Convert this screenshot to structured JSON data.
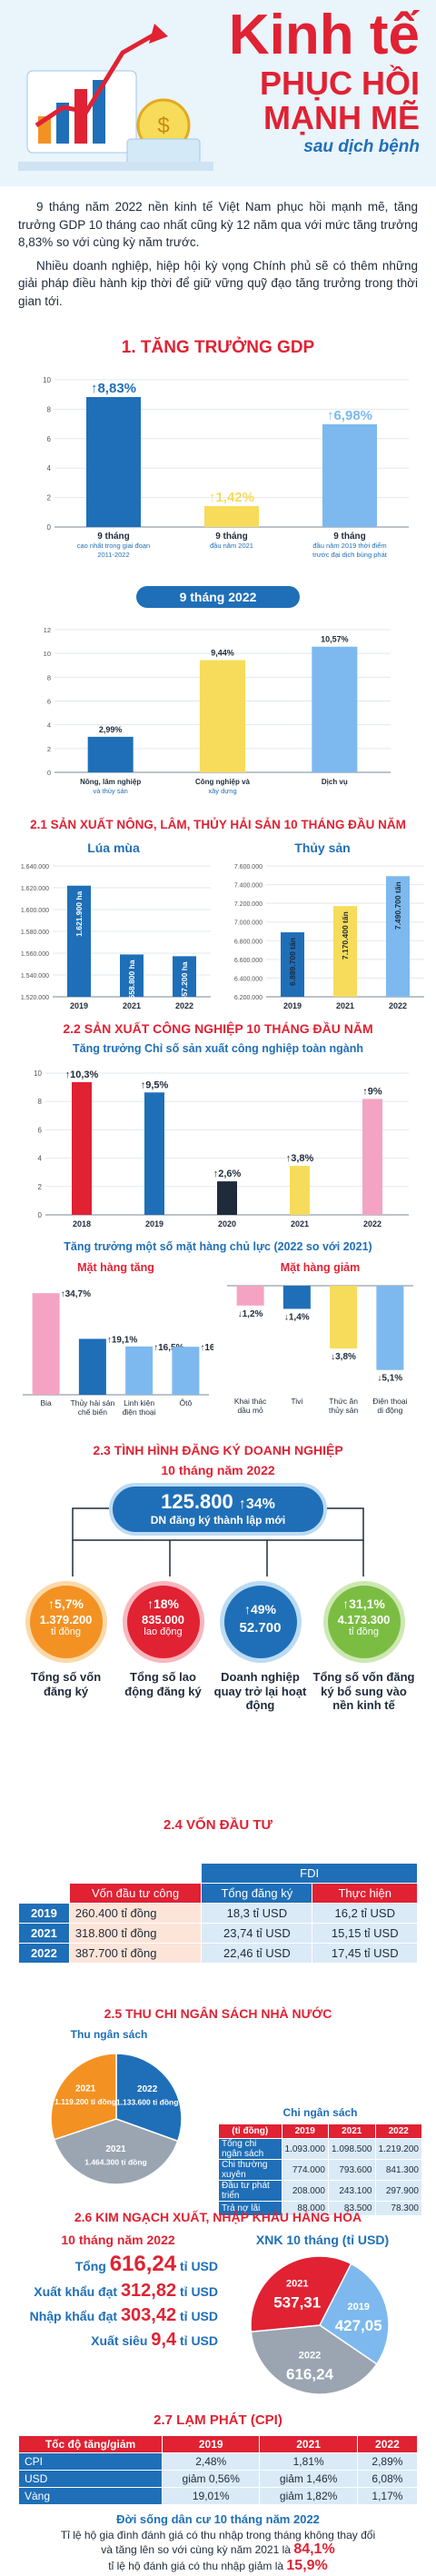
{
  "hero": {
    "title_line1": "Kinh tế",
    "title_line2": "PHỤC HỒI",
    "title_line3": "MẠNH MẼ",
    "title_line4": "sau dịch bệnh"
  },
  "intro": {
    "p1": "9 tháng năm 2022 nền kinh tế Việt Nam phục hồi mạnh mẽ, tăng trưởng GDP 10 tháng cao nhất cũng kỳ 12 năm qua với mức tăng trưởng 8,83% so với cùng kỳ năm trước.",
    "p2": "Nhiều doanh nghiệp, hiệp hội kỳ vọng Chính phủ sẽ có thêm những giải pháp điều hành kịp thời để giữ vững quỹ đạo tăng trưởng trong thời gian tới."
  },
  "sections": {
    "gdp": "1. TĂNG TRƯỞNG GDP",
    "agri": "2.1 SẢN XUẤT NÔNG, LÂM, THỦY HẢI SẢN 10 THÁNG ĐẦU NĂM",
    "industry": "2.2 SẢN XUẤT CÔNG NGHIỆP 10 THÁNG ĐẦU NĂM",
    "business": "2.3 TÌNH HÌNH ĐĂNG KÝ DOANH NGHIỆP",
    "invest": "2.4 VỐN ĐẦU TƯ",
    "budget": "2.5 THU CHI NGÂN SÁCH NHÀ NƯỚC",
    "trade": "2.6 KIM NGẠCH XUẤT, NHẬP KHẨU HÀNG HÓA",
    "cpi": "2.7 LẠM PHÁT (CPI)"
  },
  "colors": {
    "red": "#e02233",
    "blue": "#1f6fb8",
    "lightblue": "#7db9ee",
    "yellow": "#f6dc5a",
    "pink": "#f4a3c3",
    "orange": "#f39223",
    "green": "#7bbd42",
    "gray": "#9aa5b1"
  },
  "chart_data": [
    {
      "type": "bar",
      "id": "gdp",
      "categories": [
        "9 tháng",
        "9 tháng",
        "9 tháng"
      ],
      "category_notes": [
        "cao nhất trong giai đoạn 2011-2022",
        "đầu năm 2021",
        "đầu năm 2019 thời điểm trước đại dịch bùng phát"
      ],
      "values": [
        8.83,
        1.42,
        6.98
      ],
      "labels": [
        "8,83%",
        "1,42%",
        "6,98%"
      ],
      "colors": [
        "#1f6fb8",
        "#f6dc5a",
        "#7db9ee"
      ],
      "ylim": [
        0,
        10
      ]
    },
    {
      "type": "bar",
      "id": "gdp_sector",
      "title": "9 tháng 2022",
      "categories": [
        "Nông, lâm nghiệp và thủy sản",
        "Công nghiệp và xây dựng",
        "Dịch vụ"
      ],
      "values": [
        2.99,
        9.44,
        10.57
      ],
      "labels": [
        "2,99%",
        "9,44%",
        "10,57%"
      ],
      "colors": [
        "#1f6fb8",
        "#f6dc5a",
        "#7db9ee"
      ],
      "ylim": [
        0,
        12
      ]
    },
    {
      "type": "bar",
      "id": "rice",
      "title": "Lúa mùa",
      "categories": [
        "2019",
        "2021",
        "2022"
      ],
      "values": [
        1621900,
        1558800,
        1557200
      ],
      "labels": [
        "1.621.900 ha",
        "1.558.800 ha",
        "1.557.200 ha"
      ],
      "yticks": [
        "1.520.000",
        "1.540.000",
        "1.560.000",
        "1.580.000",
        "1.600.000",
        "1.620.000",
        "1.640.000"
      ],
      "ylim": [
        1520000,
        1640000
      ]
    },
    {
      "type": "bar",
      "id": "seafood",
      "title": "Thủy sản",
      "categories": [
        "2019",
        "2021",
        "2022"
      ],
      "values": [
        6889700,
        7170400,
        7490700
      ],
      "labels": [
        "6.889.700 tấn",
        "7.170.400 tấn",
        "7.490.700 tấn"
      ],
      "yticks": [
        "6.200.000",
        "6.400.000",
        "6.600.000",
        "6.800.000",
        "7.000.000",
        "7.200.000",
        "7.400.000",
        "7.600.000"
      ],
      "ylim": [
        6200000,
        7600000
      ]
    },
    {
      "type": "bar",
      "id": "industry_index",
      "title": "Tăng trưởng Chỉ số sản xuất công nghiệp toàn ngành",
      "categories": [
        "2018",
        "2019",
        "2020",
        "2021",
        "2022"
      ],
      "values": [
        10.3,
        9.5,
        2.6,
        3.8,
        9
      ],
      "labels": [
        "10,3%",
        "9,5%",
        "2,6%",
        "3,8%",
        "9%"
      ],
      "colors": [
        "#e02233",
        "#1f6fb8",
        "#1f2b3a",
        "#f6dc5a",
        "#f4a3c3"
      ],
      "yticks": [
        "0",
        "2",
        "4",
        "6",
        "8",
        "10"
      ],
      "ylim": [
        0,
        11
      ]
    },
    {
      "type": "bar",
      "id": "key_up",
      "group_title": "Tăng trưởng một số mặt hàng chủ lực (2022 so với 2021)",
      "title": "Mặt hàng tăng",
      "categories": [
        "Bia",
        "Thủy hải sản chế biến",
        "Linh kiện điện thoại",
        "Ôtô"
      ],
      "values": [
        34.7,
        19.1,
        16.5,
        16.4
      ],
      "labels": [
        "34,7%",
        "19,1%",
        "16,5%",
        "16,4%"
      ],
      "colors": [
        "#f4a3c3",
        "#1f6fb8",
        "#7db9ee",
        "#7db9ee"
      ]
    },
    {
      "type": "bar",
      "id": "key_down",
      "title": "Mặt hàng giảm",
      "categories": [
        "Khai thác dầu mỏ",
        "Tivi",
        "Thức ăn thủy sản",
        "Điện thoại di động"
      ],
      "values": [
        -1.2,
        -1.4,
        -3.8,
        -5.1
      ],
      "labels": [
        "1,2%",
        "1,4%",
        "3,8%",
        "5,1%"
      ],
      "colors": [
        "#f4a3c3",
        "#1f6fb8",
        "#f6dc5a",
        "#7db9ee"
      ]
    },
    {
      "type": "pie",
      "id": "budget_pie",
      "title": "Thu ngân sách",
      "series": [
        {
          "name": "2022",
          "value": 1133600,
          "label": "1.133.600 tỉ đồng"
        },
        {
          "name": "2021",
          "value": 1464300,
          "label": "1.464.300 tỉ đồng"
        },
        {
          "name": "2021",
          "value": 1119200,
          "label": "1.119.200 tỉ đồng"
        }
      ]
    },
    {
      "type": "pie",
      "id": "trade_pie",
      "title": "XNK 10 tháng (tỉ USD)",
      "series": [
        {
          "name": "2019",
          "value": 427.05,
          "label": "427,05"
        },
        {
          "name": "2022",
          "value": 616.24,
          "label": "616,24"
        },
        {
          "name": "2021",
          "value": 537.31,
          "label": "537,31"
        }
      ]
    }
  ],
  "business": {
    "subtitle": "10 tháng năm 2022",
    "headline_num": "125.800",
    "headline_pct": "↑34%",
    "headline_caption": "DN đăng ký thành lập mới",
    "kpis": [
      {
        "pct": "↑5,7%",
        "value": "1.379.200",
        "unit": "tỉ đồng",
        "label": "Tổng số vốn đăng ký"
      },
      {
        "pct": "↑18%",
        "value": "835.000",
        "unit": "lao động",
        "label": "Tổng số lao động đăng ký"
      },
      {
        "pct": "↑49%",
        "value": "52.700",
        "unit": "",
        "label": "Doanh nghiệp quay trở lại hoạt động"
      },
      {
        "pct": "↑31,1%",
        "value": "4.173.300",
        "unit": "tỉ đồng",
        "label": "Tổng số vốn đăng ký bổ sung vào nền kinh tế"
      }
    ]
  },
  "fdi": {
    "group": "FDI",
    "col0": "",
    "col1": "Vốn đầu tư công",
    "col2": "Tổng đăng ký",
    "col3": "Thực hiện",
    "rows": [
      {
        "year": "2019",
        "public": "260.400 tỉ đồng",
        "reg": "18,3 tỉ USD",
        "done": "16,2 tỉ USD"
      },
      {
        "year": "2021",
        "public": "318.800 tỉ đồng",
        "reg": "23,74 tỉ USD",
        "done": "15,15 tỉ USD"
      },
      {
        "year": "2022",
        "public": "387.700 tỉ đồng",
        "reg": "22,46 tỉ USD",
        "done": "17,45 tỉ USD"
      }
    ]
  },
  "budget": {
    "spend_title": "Chi ngân sách",
    "head": [
      "(tỉ đồng)",
      "2019",
      "2021",
      "2022"
    ],
    "rows": [
      {
        "label": "Tổng chi ngân sách",
        "v": [
          "1.093.000",
          "1.098.500",
          "1.219.200"
        ]
      },
      {
        "label": "Chi thường xuyên",
        "v": [
          "774.000",
          "793.600",
          "841.300"
        ]
      },
      {
        "label": "Đầu tư phát triển",
        "v": [
          "208.000",
          "243.100",
          "297.900"
        ]
      },
      {
        "label": "Trả nợ lãi",
        "v": [
          "88.000",
          "83.500",
          "78.300"
        ]
      }
    ]
  },
  "trade": {
    "subtitle": "10 tháng năm 2022",
    "total_label": "Tổng",
    "total_value": "616,24",
    "total_unit": "tỉ USD",
    "export_label": "Xuất khẩu đạt",
    "export_value": "312,82",
    "export_unit": "tỉ USD",
    "import_label": "Nhập khẩu đạt",
    "import_value": "303,42",
    "import_unit": "tỉ USD",
    "surplus_label": "Xuất siêu",
    "surplus_value": "9,4",
    "surplus_unit": "tỉ USD"
  },
  "cpi": {
    "head": [
      "Tốc độ tăng/giảm",
      "2019",
      "2021",
      "2022"
    ],
    "rows": [
      {
        "label": "CPI",
        "v": [
          "2,48%",
          "1,81%",
          "2,89%"
        ]
      },
      {
        "label": "USD",
        "v": [
          "giảm 0,56%",
          "giảm 1,46%",
          "6,08%"
        ]
      },
      {
        "label": "Vàng",
        "v": [
          "19,01%",
          "giảm 1,82%",
          "1,17%"
        ]
      }
    ]
  },
  "life": {
    "title": "Đời sống dân cư 10 tháng năm 2022",
    "line1": "Tỉ lệ hộ gia đình đánh giá có thu nhập trong tháng không thay đổi",
    "line2a": "và tăng lên so với cùng kỳ năm 2021 là",
    "line2b": "84,1%",
    "line3a": "tỉ lệ hộ đánh giá có thu nhập giảm là",
    "line3b": "15,9%"
  }
}
